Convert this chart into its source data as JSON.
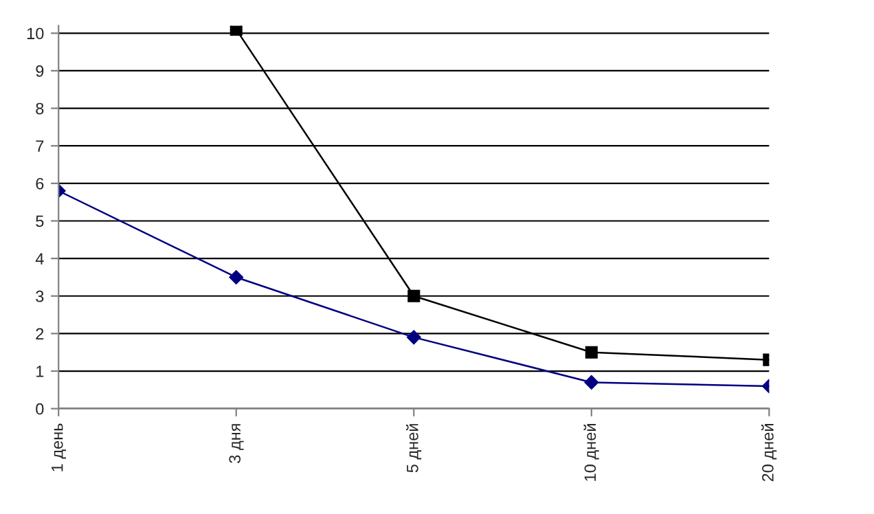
{
  "chart_data": {
    "type": "line",
    "categories": [
      "1 день",
      "3 дня",
      "5 дней",
      "10 дней",
      "20 дней"
    ],
    "series": [
      {
        "color": "#000080",
        "values": [
          5.8,
          3.5,
          1.9,
          0.7,
          0.6
        ],
        "marker": "diamond"
      },
      {
        "color": "#000000",
        "values": [
          null,
          10.1,
          3.0,
          1.5,
          1.3
        ],
        "marker": "square"
      }
    ],
    "ylim": [
      0,
      10.2
    ],
    "yticks": [
      0,
      1,
      2,
      3,
      4,
      5,
      6,
      7,
      8,
      9,
      10
    ],
    "grid": "y",
    "legend": false,
    "line_style": "solid"
  }
}
